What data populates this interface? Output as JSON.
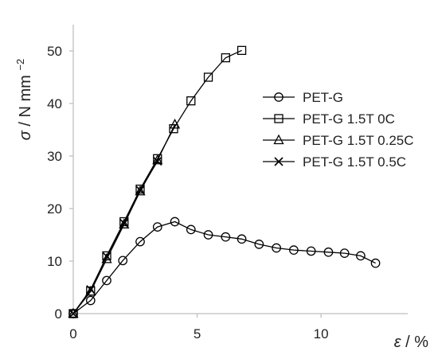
{
  "chart_data": {
    "type": "scatter",
    "xlabel": {
      "symbol": "ε",
      "unit": "%"
    },
    "ylabel": {
      "symbol": "σ",
      "unit": "N mm",
      "exponent": "−2"
    },
    "xlim": [
      0,
      13.5
    ],
    "ylim": [
      0,
      55
    ],
    "xticks": [
      0,
      5,
      10
    ],
    "yticks": [
      0,
      10,
      20,
      30,
      40,
      50
    ],
    "grid": false,
    "legend": "right",
    "colors": {
      "line": "#000000",
      "axis": "#bfbfbf"
    },
    "series": [
      {
        "name": "PET-G",
        "marker": "circle",
        "x": [
          0,
          0.7,
          1.35,
          2.0,
          2.7,
          3.4,
          4.1,
          4.75,
          5.45,
          6.15,
          6.8,
          7.5,
          8.2,
          8.9,
          9.6,
          10.3,
          10.95,
          11.6,
          12.2
        ],
        "y": [
          0,
          2.5,
          6.3,
          10.1,
          13.7,
          16.5,
          17.5,
          16.0,
          15.0,
          14.6,
          14.2,
          13.2,
          12.5,
          12.1,
          11.9,
          11.7,
          11.5,
          11.0,
          9.6
        ]
      },
      {
        "name": "PET-G 1.5T 0C",
        "marker": "square",
        "x": [
          0,
          0.7,
          1.35,
          2.05,
          2.7,
          3.4,
          4.05,
          4.75,
          5.45,
          6.15,
          6.8
        ],
        "y": [
          0,
          4.3,
          11.0,
          17.5,
          23.7,
          29.5,
          35.2,
          40.5,
          45.0,
          48.7,
          50.1
        ]
      },
      {
        "name": "PET-G 1.5T 0.25C",
        "marker": "triangle",
        "x": [
          0,
          0.7,
          1.35,
          2.05,
          2.7,
          3.4,
          4.1
        ],
        "y": [
          0,
          4.2,
          10.4,
          17.0,
          23.3,
          29.2,
          36.0
        ]
      },
      {
        "name": "PET-G 1.5T 0.5C",
        "marker": "x",
        "x": [
          0,
          0.7,
          1.35,
          2.05,
          2.7,
          3.4
        ],
        "y": [
          0,
          4.6,
          10.9,
          17.2,
          23.5,
          29.0
        ]
      }
    ]
  }
}
